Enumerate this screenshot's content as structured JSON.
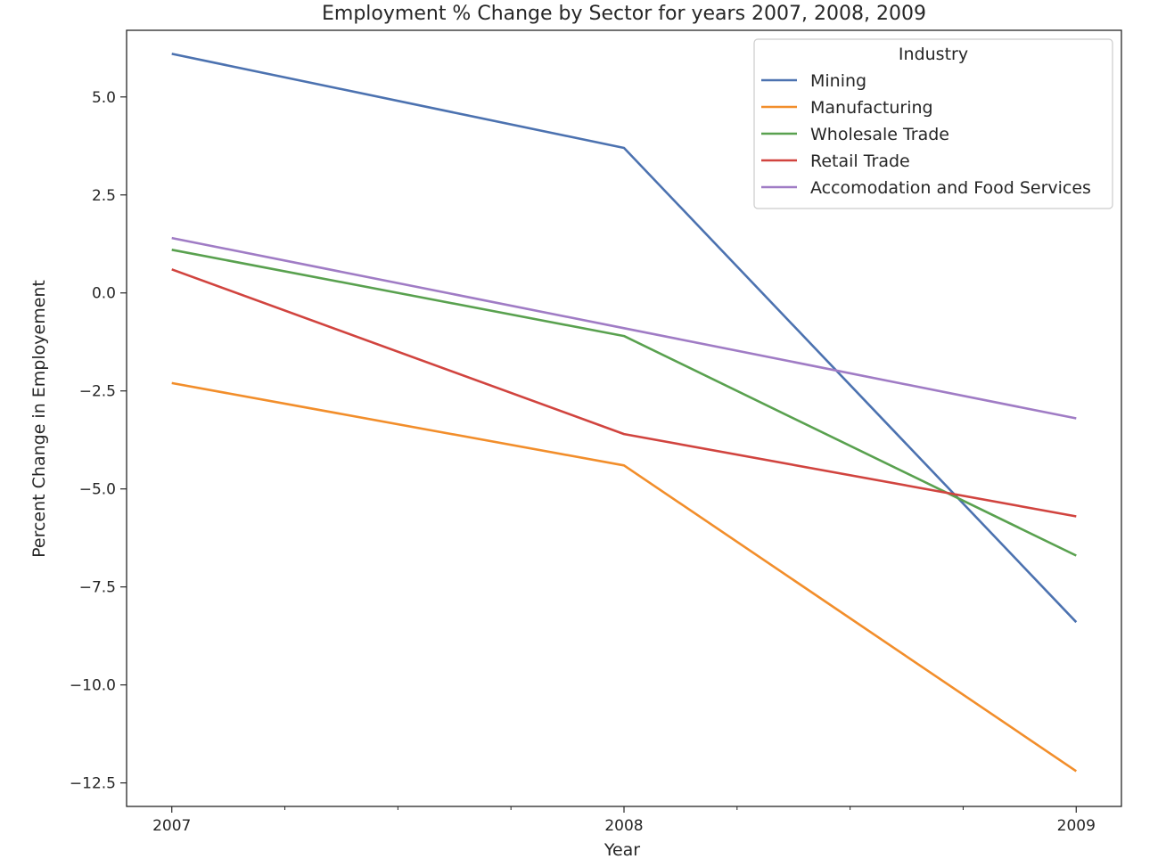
{
  "chart_data": {
    "type": "line",
    "title": "Employment % Change by Sector for years 2007, 2008, 2009",
    "xlabel": "Year",
    "ylabel": "Percent Change in Employement",
    "x": [
      2007,
      2008,
      2009
    ],
    "x_tick_labels": [
      "2007",
      "2008",
      "2009"
    ],
    "xlim": [
      2006.9,
      2009.1
    ],
    "ylim": [
      -13.1,
      6.7
    ],
    "y_ticks": [
      5.0,
      2.5,
      0.0,
      -2.5,
      -5.0,
      -7.5,
      -10.0,
      -12.5
    ],
    "y_tick_labels": [
      "5.0",
      "2.5",
      "0.0",
      "−2.5",
      "−5.0",
      "−7.5",
      "−10.0",
      "−12.5"
    ],
    "grid": false,
    "legend": {
      "title": "Industry",
      "placement": "top-right"
    },
    "series": [
      {
        "name": "Mining",
        "color": "#4c72b0",
        "values": [
          6.1,
          3.7,
          -8.4
        ]
      },
      {
        "name": "Manufacturing",
        "color": "#f28e2b",
        "values": [
          -2.3,
          -4.4,
          -12.2
        ]
      },
      {
        "name": "Wholesale Trade",
        "color": "#59a14f",
        "values": [
          1.1,
          -1.1,
          -6.7
        ]
      },
      {
        "name": "Retail Trade",
        "color": "#d1443f",
        "values": [
          0.6,
          -3.6,
          -5.7
        ]
      },
      {
        "name": "Accomodation and Food Services",
        "color": "#a07cc5",
        "values": [
          1.4,
          -0.9,
          -3.2
        ]
      }
    ]
  }
}
